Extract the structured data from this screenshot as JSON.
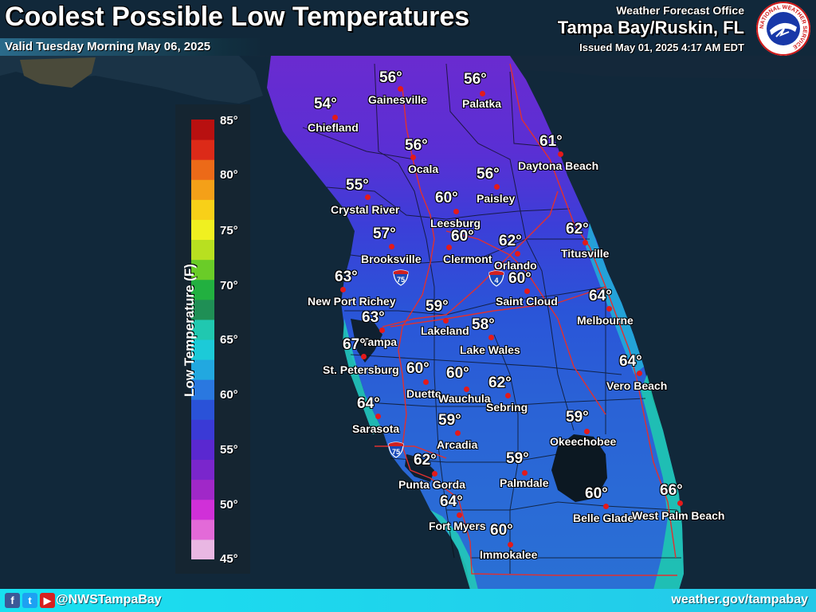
{
  "header": {
    "title": "Coolest Possible Low Temperatures",
    "valid_text": "Valid Tuesday Morning May 06, 2025",
    "office_line": "Weather Forecast Office",
    "office_name": "Tampa Bay/Ruskin, FL",
    "issued": "Issued May 01, 2025 4:17 AM EDT",
    "logo_icon": "nws-logo-icon",
    "logo_text": "NATIONAL WEATHER SERVICE"
  },
  "legend": {
    "title": "Low Temperature (F)",
    "ticks": [
      "85°",
      "80°",
      "75°",
      "70°",
      "65°",
      "60°",
      "55°",
      "50°",
      "45°"
    ],
    "min": 45,
    "max": 85
  },
  "highways": [
    "75",
    "4",
    "75"
  ],
  "cities": [
    {
      "name": "Gainesville",
      "temp": "56°"
    },
    {
      "name": "Palatka",
      "temp": "56°"
    },
    {
      "name": "Chiefland",
      "temp": "54°"
    },
    {
      "name": "Ocala",
      "temp": "56°"
    },
    {
      "name": "Daytona Beach",
      "temp": "61°"
    },
    {
      "name": "Crystal River",
      "temp": "55°"
    },
    {
      "name": "Paisley",
      "temp": "56°"
    },
    {
      "name": "Leesburg",
      "temp": "60°"
    },
    {
      "name": "Brooksville",
      "temp": "57°"
    },
    {
      "name": "Clermont",
      "temp": "60°"
    },
    {
      "name": "Orlando",
      "temp": "62°"
    },
    {
      "name": "Titusville",
      "temp": "62°"
    },
    {
      "name": "New Port Richey",
      "temp": "63°"
    },
    {
      "name": "Saint Cloud",
      "temp": "60°"
    },
    {
      "name": "Melbourne",
      "temp": "64°"
    },
    {
      "name": "Lakeland",
      "temp": "59°"
    },
    {
      "name": "Tampa",
      "temp": "63°"
    },
    {
      "name": "Lake Wales",
      "temp": "58°"
    },
    {
      "name": "St. Petersburg",
      "temp": "67°"
    },
    {
      "name": "Vero Beach",
      "temp": "64°"
    },
    {
      "name": "Duette",
      "temp": "60°"
    },
    {
      "name": "Wauchula",
      "temp": "60°"
    },
    {
      "name": "Sebring",
      "temp": "62°"
    },
    {
      "name": "Sarasota",
      "temp": "64°"
    },
    {
      "name": "Arcadia",
      "temp": "59°"
    },
    {
      "name": "Okeechobee",
      "temp": "59°"
    },
    {
      "name": "Punta Gorda",
      "temp": "62°"
    },
    {
      "name": "Palmdale",
      "temp": "59°"
    },
    {
      "name": "Belle Glade",
      "temp": "60°"
    },
    {
      "name": "West Palm Beach",
      "temp": "66°"
    },
    {
      "name": "Fort Myers",
      "temp": "64°"
    },
    {
      "name": "Immokalee",
      "temp": "60°"
    }
  ],
  "footer": {
    "social_icons": [
      "facebook-icon",
      "twitter-icon",
      "youtube-icon"
    ],
    "handle": "@NWSTampaBay",
    "website": "weather.gov/tampabay"
  }
}
